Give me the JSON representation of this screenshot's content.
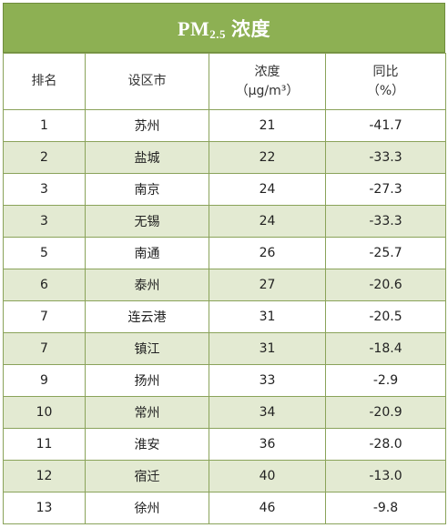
{
  "title": {
    "main": "PM",
    "sub": "2.5",
    "suffix": "浓度"
  },
  "headers": {
    "rank": "排名",
    "city": "设区市",
    "conc_line1": "浓度",
    "conc_line2": "（μg/m³）",
    "yoy_line1": "同比",
    "yoy_line2": "（%）"
  },
  "rows": [
    {
      "rank": "1",
      "city": "苏州",
      "conc": "21",
      "yoy": "-41.7"
    },
    {
      "rank": "2",
      "city": "盐城",
      "conc": "22",
      "yoy": "-33.3"
    },
    {
      "rank": "3",
      "city": "南京",
      "conc": "24",
      "yoy": "-27.3"
    },
    {
      "rank": "3",
      "city": "无锡",
      "conc": "24",
      "yoy": "-33.3"
    },
    {
      "rank": "5",
      "city": "南通",
      "conc": "26",
      "yoy": "-25.7"
    },
    {
      "rank": "6",
      "city": "泰州",
      "conc": "27",
      "yoy": "-20.6"
    },
    {
      "rank": "7",
      "city": "连云港",
      "conc": "31",
      "yoy": "-20.5"
    },
    {
      "rank": "7",
      "city": "镇江",
      "conc": "31",
      "yoy": "-18.4"
    },
    {
      "rank": "9",
      "city": "扬州",
      "conc": "33",
      "yoy": "-2.9"
    },
    {
      "rank": "10",
      "city": "常州",
      "conc": "34",
      "yoy": "-20.9"
    },
    {
      "rank": "11",
      "city": "淮安",
      "conc": "36",
      "yoy": "-28.0"
    },
    {
      "rank": "12",
      "city": "宿迁",
      "conc": "40",
      "yoy": "-13.0"
    },
    {
      "rank": "13",
      "city": "徐州",
      "conc": "46",
      "yoy": "-9.8"
    }
  ],
  "colors": {
    "title_bg": "#8db053",
    "border": "#8aa35a",
    "stripe": "#e3ead2"
  }
}
